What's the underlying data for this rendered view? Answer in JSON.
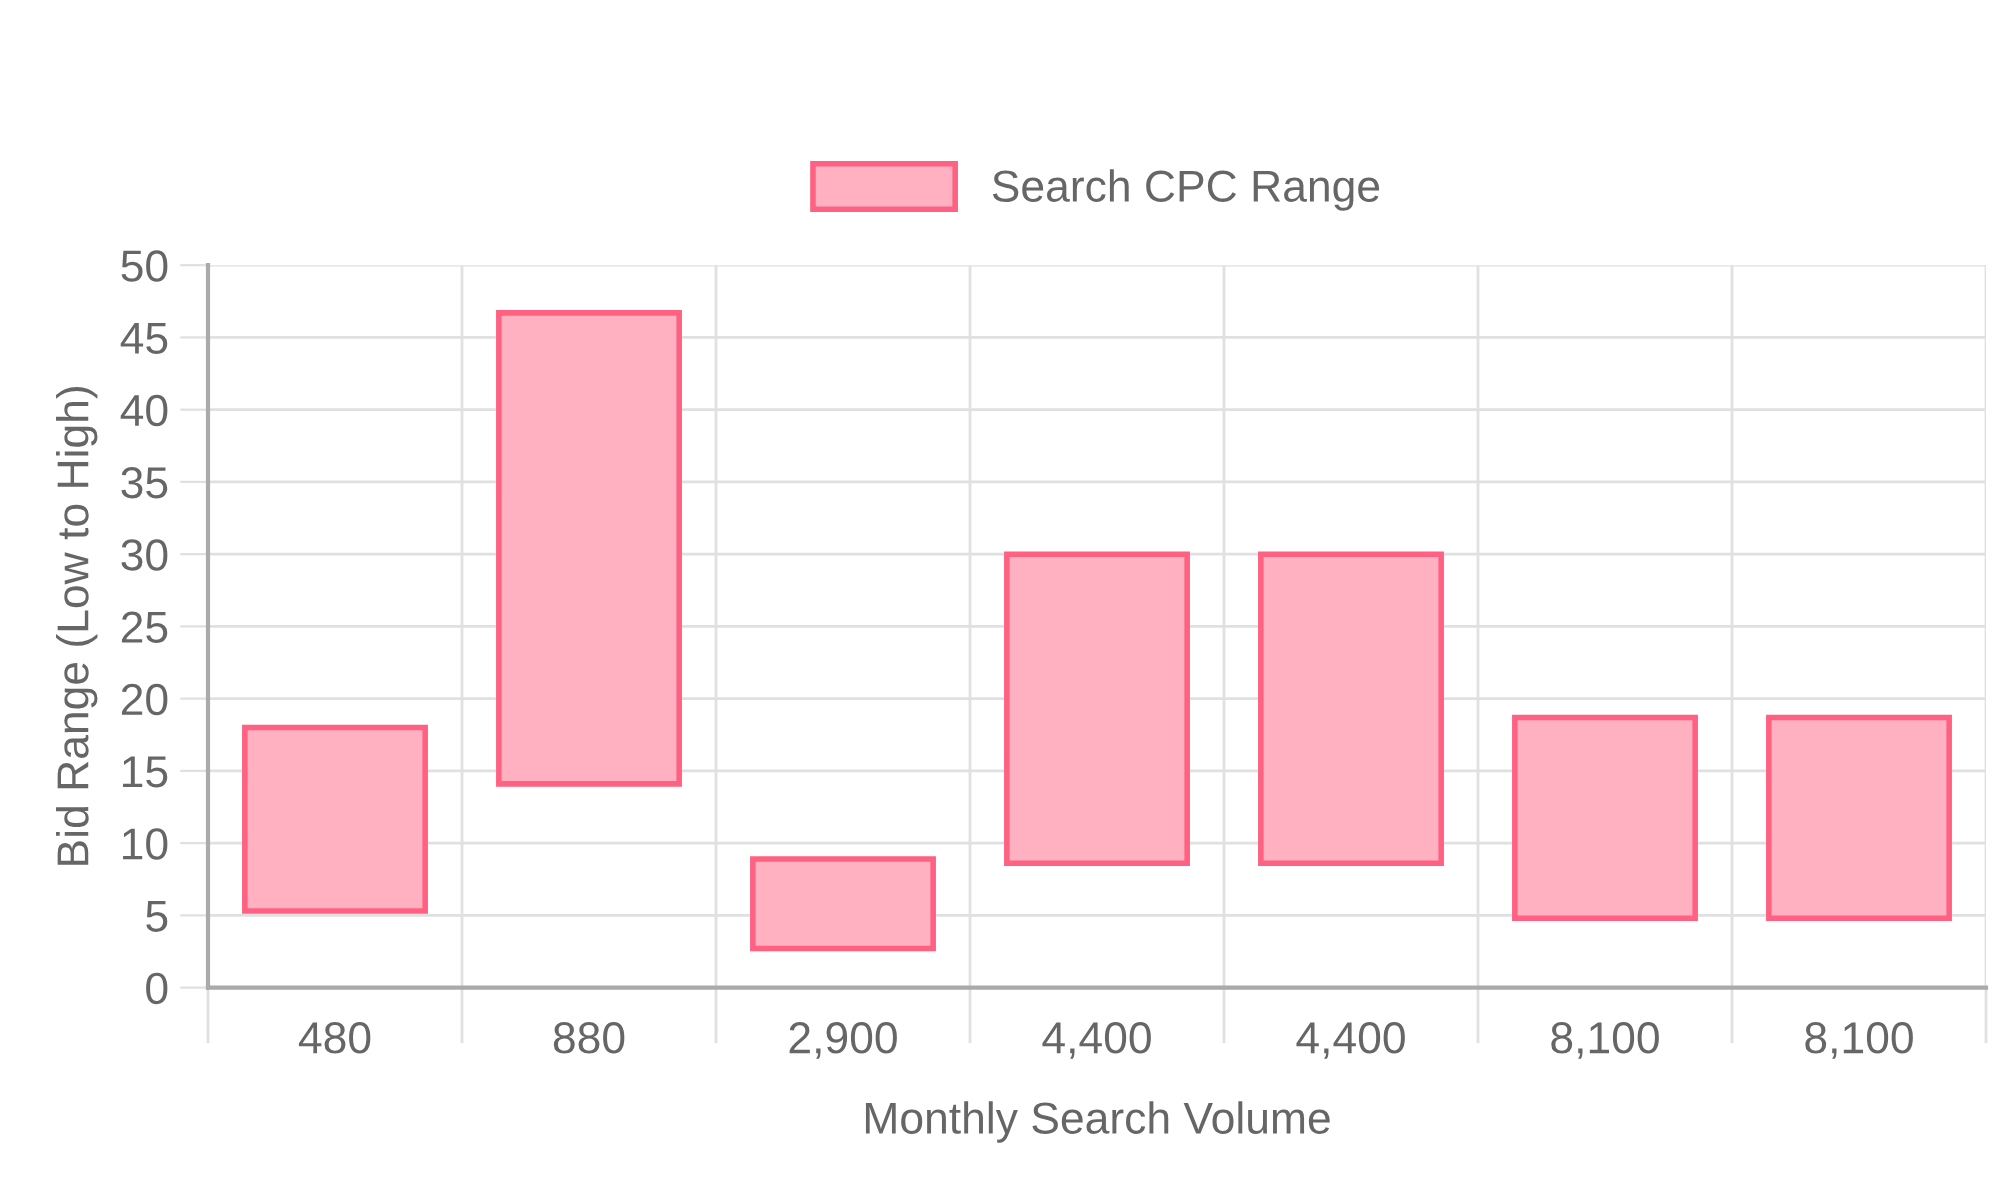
{
  "chart_data": {
    "type": "bar",
    "xlabel": "Monthly Search Volume",
    "ylabel": "Bid Range (Low to High)",
    "categories": [
      "480",
      "880",
      "2,900",
      "4,400",
      "4,400",
      "8,100",
      "8,100"
    ],
    "series": [
      {
        "name": "Search CPC Range",
        "color": "#ffb0c1",
        "base": [
          5.3,
          14.1,
          2.7,
          8.6,
          8.6,
          4.8,
          4.8
        ],
        "values": [
          12.7,
          32.6,
          6.2,
          21.4,
          21.4,
          13.9,
          13.9
        ]
      }
    ],
    "ylim": [
      0,
      50
    ],
    "yticks": [
      0,
      5,
      10,
      15,
      20,
      25,
      30,
      35,
      40,
      45,
      50
    ],
    "grid": true,
    "legend": "top"
  }
}
